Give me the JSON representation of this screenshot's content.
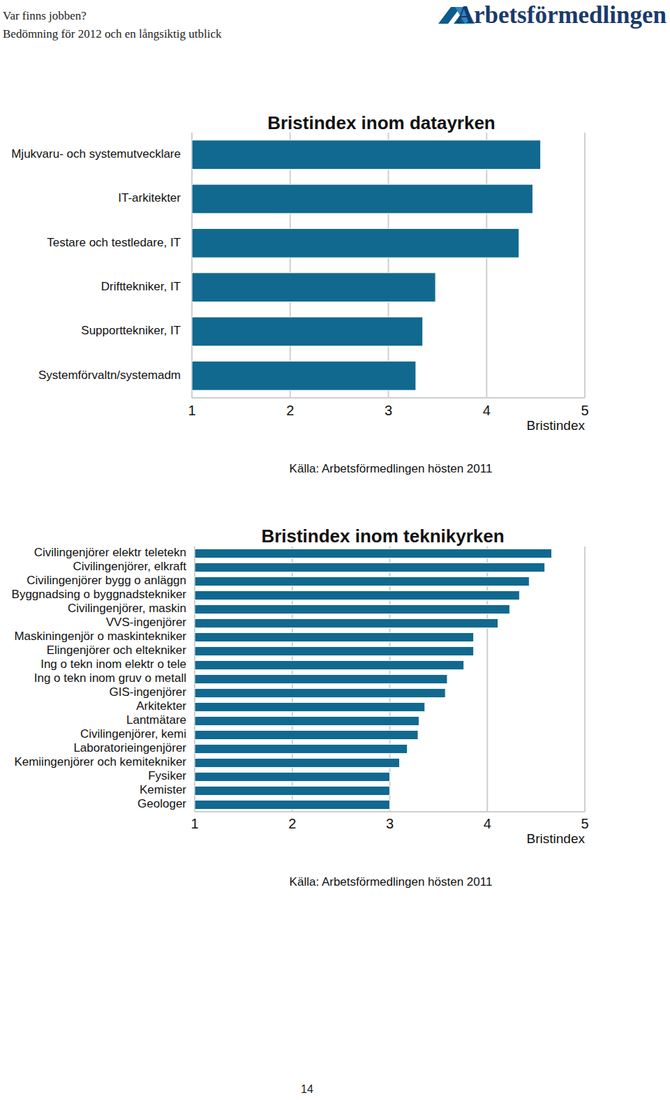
{
  "page": {
    "header_title": "Var finns jobben?",
    "header_subtitle": "Bedömning för 2012 och en långsiktig utblick",
    "logo": "Arbetsförmedlingen",
    "page_number": "14"
  },
  "chart_data": [
    {
      "type": "bar",
      "orientation": "horizontal",
      "title": "Bristindex inom datayrken",
      "categories": [
        "Mjukvaru- och systemutvecklare",
        "IT-arkitekter",
        "Testare och testledare, IT",
        "Drifttekniker, IT",
        "Supporttekniker, IT",
        "Systemförvaltn/systemadm"
      ],
      "values": [
        4.55,
        4.47,
        4.33,
        3.48,
        3.35,
        3.28
      ],
      "color": "#11698f",
      "xlim": [
        1,
        5
      ],
      "xticks": [
        1,
        2,
        3,
        4,
        5
      ],
      "grid": true,
      "xlabel": "Bristindex",
      "annotations": [
        "Källa: Arbetsförmedlingen hösten 2011"
      ]
    },
    {
      "type": "bar",
      "orientation": "horizontal",
      "title": "Bristindex inom teknikyrken",
      "categories": [
        "Civilingenjörer elektr teletekn",
        "Civilingenjörer, elkraft",
        "Civilingenjörer bygg o anläggn",
        "Byggnadsing o byggnadstekniker",
        "Civilingenjörer, maskin",
        "VVS-ingenjörer",
        "Maskiningenjör o maskintekniker",
        "Elingenjörer och eltekniker",
        "Ing o tekn inom elektr o tele",
        "Ing o tekn inom gruv o metall",
        "GIS-ingenjörer",
        "Arkitekter",
        "Lantmätare",
        "Civilingenjörer, kemi",
        "Laboratorieingenjörer",
        "Kemiingenjörer och kemitekniker",
        "Fysiker",
        "Kemister",
        "Geologer"
      ],
      "values": [
        4.66,
        4.59,
        4.43,
        4.33,
        4.23,
        4.11,
        3.86,
        3.86,
        3.76,
        3.59,
        3.57,
        3.36,
        3.3,
        3.29,
        3.18,
        3.1,
        3.0,
        3.0,
        3.0
      ],
      "color": "#11698f",
      "xlim": [
        1,
        5
      ],
      "xticks": [
        1,
        2,
        3,
        4,
        5
      ],
      "grid": true,
      "xlabel": "Bristindex",
      "annotations": [
        "Källa: Arbetsförmedlingen hösten 2011"
      ]
    }
  ]
}
